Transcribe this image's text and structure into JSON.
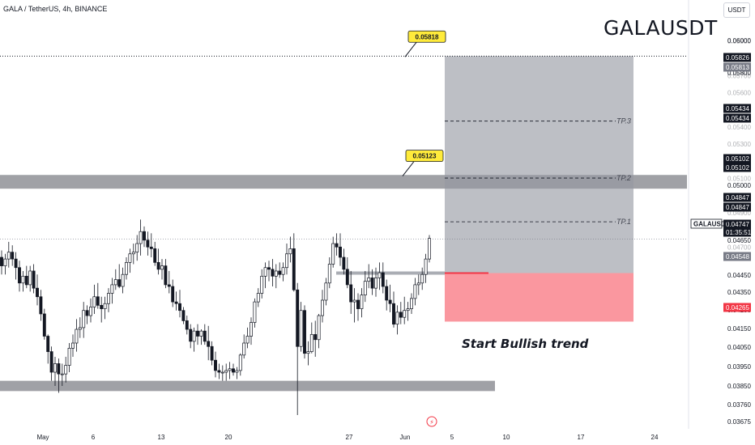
{
  "header": {
    "symbol_line": "GALA / TetherUS, 4h, BINANCE",
    "big_symbol": "GALAUSDT",
    "currency_button": "USDT"
  },
  "chart_data": {
    "type": "candlestick",
    "title": "GALA / TetherUS, 4h, BINANCE",
    "ylim": [
      0.0364,
      0.0614
    ],
    "y_ticks": [
      "0.06000",
      "0.05900",
      "0.05800",
      "0.05700",
      "0.05600",
      "0.05500",
      "0.05400",
      "0.05300",
      "0.05200",
      "0.05100",
      "0.05000",
      "0.04900",
      "0.04800",
      "0.04700",
      "0.04650",
      "0.04550",
      "0.04450",
      "0.04350",
      "0.04250",
      "0.04150",
      "0.04050",
      "0.03950",
      "0.03850",
      "0.03760",
      "0.03675"
    ],
    "x_ticks": [
      "May",
      "6",
      "13",
      "20",
      "27",
      "Jun",
      "5",
      "10",
      "17",
      "24"
    ],
    "price_tags": [
      {
        "label": "0.05826",
        "price": 0.05826,
        "style": "black"
      },
      {
        "label": "0.05813",
        "price": 0.05813,
        "style": "gray"
      },
      {
        "label": "0.05434",
        "price": 0.05434,
        "style": "black"
      },
      {
        "label": "0.05434",
        "price": 0.05434,
        "style": "black"
      },
      {
        "label": "0.05102",
        "price": 0.05102,
        "style": "black"
      },
      {
        "label": "0.05102",
        "price": 0.05102,
        "style": "black"
      },
      {
        "label": "0.04847",
        "price": 0.04847,
        "style": "black"
      },
      {
        "label": "0.04847",
        "price": 0.04847,
        "style": "black"
      },
      {
        "label": "0.04747",
        "price": 0.04747,
        "style": "black"
      },
      {
        "label": "01:35:51",
        "price": 0.04747,
        "style": "black"
      },
      {
        "label": "0.04548",
        "price": 0.04548,
        "style": "gray"
      },
      {
        "label": "0.04265",
        "price": 0.04265,
        "style": "red"
      }
    ],
    "symbol_tag": "GALAUSDT",
    "callouts": [
      {
        "label": "0.05818",
        "price": 0.05818
      },
      {
        "label": "0.05123",
        "price": 0.05123
      }
    ],
    "targets": [
      {
        "label": "TP.3",
        "price": 0.05434
      },
      {
        "label": "TP.2",
        "price": 0.05102
      },
      {
        "label": "TP.1",
        "price": 0.04847
      }
    ],
    "position": {
      "entry": 0.04548,
      "target": 0.05813,
      "stop": 0.04265
    },
    "zones": [
      {
        "from": 0.0504,
        "to": 0.0512
      },
      {
        "from": 0.0386,
        "to": 0.0392
      }
    ],
    "last_price": 0.04747,
    "annotation": "Start Bullish trend",
    "candles": [
      [
        0.0464,
        0.0468,
        0.0454,
        0.0459
      ],
      [
        0.0459,
        0.0466,
        0.0454,
        0.0463
      ],
      [
        0.0463,
        0.0473,
        0.0458,
        0.0467
      ],
      [
        0.0467,
        0.0471,
        0.0459,
        0.0463
      ],
      [
        0.0463,
        0.0467,
        0.0451,
        0.0458
      ],
      [
        0.0458,
        0.0462,
        0.0444,
        0.0449
      ],
      [
        0.0449,
        0.0456,
        0.0444,
        0.0453
      ],
      [
        0.0453,
        0.0459,
        0.0446,
        0.0448
      ],
      [
        0.0448,
        0.0459,
        0.0444,
        0.0456
      ],
      [
        0.0456,
        0.046,
        0.0443,
        0.0446
      ],
      [
        0.0446,
        0.0454,
        0.0436,
        0.0441
      ],
      [
        0.0441,
        0.0445,
        0.0427,
        0.0431
      ],
      [
        0.0431,
        0.0434,
        0.0416,
        0.0418
      ],
      [
        0.0418,
        0.0419,
        0.0402,
        0.0409
      ],
      [
        0.0409,
        0.0412,
        0.0392,
        0.0397
      ],
      [
        0.0397,
        0.0406,
        0.0389,
        0.0402
      ],
      [
        0.0402,
        0.0405,
        0.0385,
        0.0396
      ],
      [
        0.0396,
        0.0402,
        0.0389,
        0.0396
      ],
      [
        0.0396,
        0.0406,
        0.0391,
        0.0401
      ],
      [
        0.0401,
        0.0414,
        0.0397,
        0.0411
      ],
      [
        0.0411,
        0.0419,
        0.0406,
        0.0414
      ],
      [
        0.0414,
        0.0428,
        0.0409,
        0.0422
      ],
      [
        0.0422,
        0.0429,
        0.0417,
        0.0423
      ],
      [
        0.0423,
        0.0438,
        0.0417,
        0.0433
      ],
      [
        0.0433,
        0.0436,
        0.0425,
        0.043
      ],
      [
        0.043,
        0.044,
        0.0426,
        0.0435
      ],
      [
        0.0435,
        0.0448,
        0.0431,
        0.0441
      ],
      [
        0.0441,
        0.0449,
        0.0434,
        0.0436
      ],
      [
        0.0436,
        0.0441,
        0.0426,
        0.0434
      ],
      [
        0.0434,
        0.0441,
        0.0428,
        0.0437
      ],
      [
        0.0437,
        0.0446,
        0.0432,
        0.0443
      ],
      [
        0.0443,
        0.0452,
        0.0437,
        0.0448
      ],
      [
        0.0448,
        0.0457,
        0.0445,
        0.0451
      ],
      [
        0.0451,
        0.046,
        0.0446,
        0.0447
      ],
      [
        0.0447,
        0.0458,
        0.0443,
        0.0454
      ],
      [
        0.0454,
        0.0464,
        0.0451,
        0.0461
      ],
      [
        0.0461,
        0.0469,
        0.0455,
        0.0466
      ],
      [
        0.0466,
        0.0472,
        0.046,
        0.0467
      ],
      [
        0.0467,
        0.0477,
        0.0462,
        0.0472
      ],
      [
        0.0472,
        0.0486,
        0.0465,
        0.0479
      ],
      [
        0.0479,
        0.0482,
        0.047,
        0.0474
      ],
      [
        0.0474,
        0.0479,
        0.0465,
        0.047
      ],
      [
        0.047,
        0.0478,
        0.0464,
        0.0469
      ],
      [
        0.0469,
        0.0473,
        0.0459,
        0.0461
      ],
      [
        0.0461,
        0.0469,
        0.0454,
        0.0457
      ],
      [
        0.0457,
        0.0463,
        0.0451,
        0.0459
      ],
      [
        0.0459,
        0.0463,
        0.0446,
        0.0448
      ],
      [
        0.0448,
        0.0456,
        0.0443,
        0.0447
      ],
      [
        0.0447,
        0.0451,
        0.0435,
        0.0438
      ],
      [
        0.0438,
        0.0444,
        0.0433,
        0.0437
      ],
      [
        0.0437,
        0.0445,
        0.0429,
        0.0433
      ],
      [
        0.0433,
        0.0435,
        0.0425,
        0.0427
      ],
      [
        0.0427,
        0.043,
        0.0419,
        0.0422
      ],
      [
        0.0422,
        0.0425,
        0.0411,
        0.0415
      ],
      [
        0.0415,
        0.0423,
        0.0409,
        0.0421
      ],
      [
        0.0421,
        0.0425,
        0.0413,
        0.0418
      ],
      [
        0.0418,
        0.0422,
        0.0413,
        0.0421
      ],
      [
        0.0421,
        0.0425,
        0.0413,
        0.0415
      ],
      [
        0.0415,
        0.0424,
        0.0404,
        0.0412
      ],
      [
        0.0412,
        0.0415,
        0.0401,
        0.0404
      ],
      [
        0.0404,
        0.0409,
        0.0394,
        0.0398
      ],
      [
        0.0398,
        0.0402,
        0.0393,
        0.0397
      ],
      [
        0.0397,
        0.0401,
        0.0392,
        0.0397
      ],
      [
        0.0397,
        0.0402,
        0.0392,
        0.0398
      ],
      [
        0.0398,
        0.0403,
        0.0393,
        0.0399
      ],
      [
        0.0399,
        0.0402,
        0.0395,
        0.0397
      ],
      [
        0.0397,
        0.04,
        0.0393,
        0.0398
      ],
      [
        0.0398,
        0.0408,
        0.0395,
        0.0407
      ],
      [
        0.0407,
        0.0419,
        0.0405,
        0.0414
      ],
      [
        0.0414,
        0.0423,
        0.0411,
        0.0418
      ],
      [
        0.0418,
        0.0429,
        0.0413,
        0.0426
      ],
      [
        0.0426,
        0.044,
        0.0423,
        0.0438
      ],
      [
        0.0438,
        0.0446,
        0.0435,
        0.0443
      ],
      [
        0.0443,
        0.0457,
        0.044,
        0.0453
      ],
      [
        0.0453,
        0.0461,
        0.0446,
        0.0458
      ],
      [
        0.0458,
        0.0462,
        0.045,
        0.0457
      ],
      [
        0.0457,
        0.0463,
        0.0447,
        0.0453
      ],
      [
        0.0453,
        0.046,
        0.0446,
        0.0456
      ],
      [
        0.0456,
        0.0461,
        0.0452,
        0.0454
      ],
      [
        0.0454,
        0.0461,
        0.045,
        0.0458
      ],
      [
        0.0458,
        0.0472,
        0.0454,
        0.0466
      ],
      [
        0.0466,
        0.0476,
        0.0461,
        0.0469
      ],
      [
        0.0469,
        0.0478,
        0.0444,
        0.0445
      ],
      [
        0.0445,
        0.0449,
        0.0372,
        0.0412
      ],
      [
        0.0412,
        0.0438,
        0.0409,
        0.0433
      ],
      [
        0.0433,
        0.0436,
        0.0405,
        0.0408
      ],
      [
        0.0408,
        0.0415,
        0.0401,
        0.0409
      ],
      [
        0.0409,
        0.0426,
        0.0408,
        0.0419
      ],
      [
        0.0419,
        0.0427,
        0.0406,
        0.0416
      ],
      [
        0.0416,
        0.0431,
        0.0411,
        0.043
      ],
      [
        0.043,
        0.0445,
        0.0426,
        0.0439
      ],
      [
        0.0439,
        0.0452,
        0.0436,
        0.0449
      ],
      [
        0.0449,
        0.0464,
        0.0446,
        0.046
      ],
      [
        0.046,
        0.0476,
        0.0458,
        0.0472
      ],
      [
        0.0472,
        0.0478,
        0.0465,
        0.047
      ],
      [
        0.047,
        0.0478,
        0.0459,
        0.0464
      ],
      [
        0.0464,
        0.0469,
        0.0454,
        0.0457
      ],
      [
        0.0457,
        0.0464,
        0.0446,
        0.0448
      ],
      [
        0.0448,
        0.0456,
        0.0431,
        0.0438
      ],
      [
        0.0438,
        0.0446,
        0.0426,
        0.0439
      ],
      [
        0.0439,
        0.0443,
        0.0427,
        0.0434
      ],
      [
        0.0434,
        0.0446,
        0.0429,
        0.0442
      ],
      [
        0.0442,
        0.0456,
        0.0438,
        0.045
      ],
      [
        0.045,
        0.046,
        0.0446,
        0.0452
      ],
      [
        0.0452,
        0.0457,
        0.0442,
        0.0446
      ],
      [
        0.0446,
        0.0458,
        0.0441,
        0.0452
      ],
      [
        0.0452,
        0.0461,
        0.0445,
        0.0455
      ],
      [
        0.0455,
        0.0461,
        0.0443,
        0.0447
      ],
      [
        0.0447,
        0.0451,
        0.0433,
        0.0439
      ],
      [
        0.0439,
        0.0448,
        0.0432,
        0.0437
      ],
      [
        0.0437,
        0.0444,
        0.0423,
        0.0425
      ],
      [
        0.0425,
        0.0436,
        0.0419,
        0.0432
      ],
      [
        0.0432,
        0.0438,
        0.0425,
        0.0429
      ],
      [
        0.0429,
        0.0441,
        0.0425,
        0.0433
      ],
      [
        0.0433,
        0.0438,
        0.0427,
        0.0434
      ],
      [
        0.0434,
        0.0443,
        0.0431,
        0.044
      ],
      [
        0.044,
        0.0452,
        0.0436,
        0.0448
      ],
      [
        0.0448,
        0.0454,
        0.0442,
        0.0449
      ],
      [
        0.0449,
        0.0458,
        0.0445,
        0.0454
      ],
      [
        0.0454,
        0.0466,
        0.0449,
        0.0463
      ],
      [
        0.0463,
        0.0477,
        0.0461,
        0.0475
      ]
    ]
  }
}
